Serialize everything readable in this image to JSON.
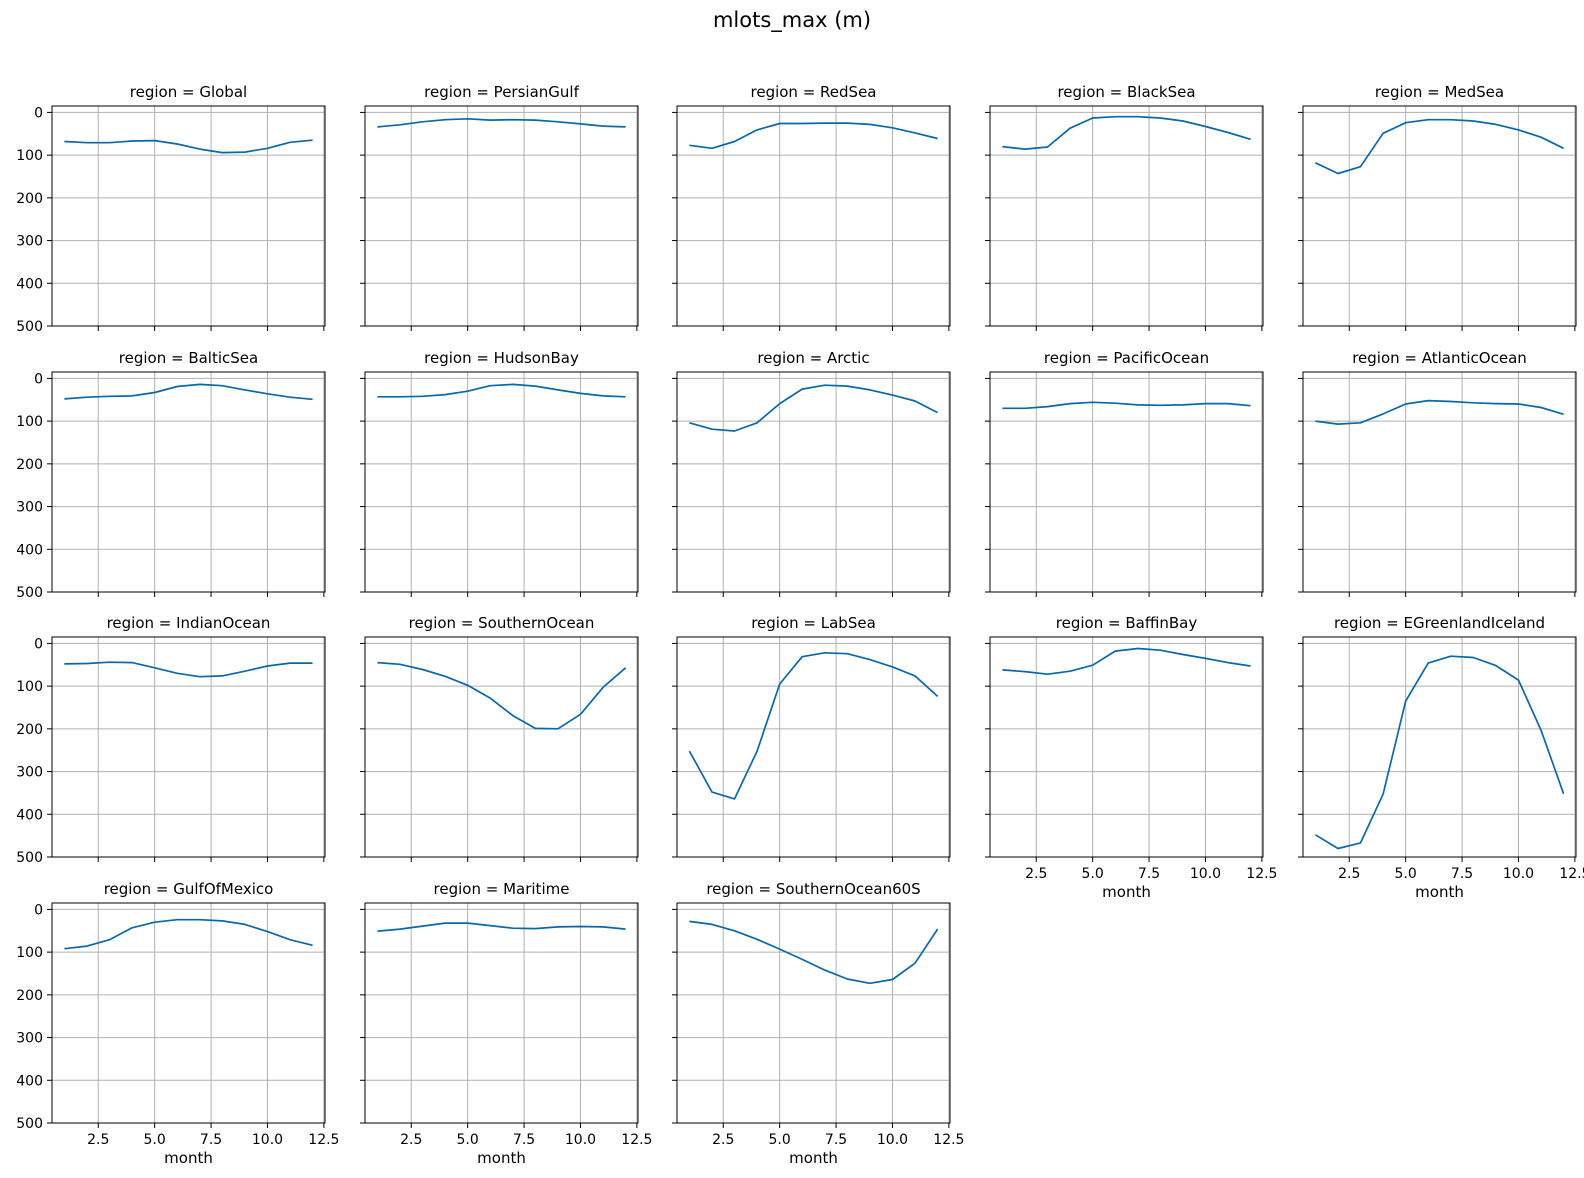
{
  "chart_data": {
    "type": "line",
    "title": "mlots_max (m)",
    "xlabel": "month",
    "ylabel": "",
    "panel_title_prefix": "region = ",
    "xlim": [
      0.45,
      12.55
    ],
    "ylim": [
      500,
      -15
    ],
    "y_inverted": true,
    "grid": true,
    "line_color": "#0868ac",
    "x_ticks": [
      2.5,
      5.0,
      7.5,
      10.0,
      12.5
    ],
    "x_tick_labels": [
      "2.5",
      "5.0",
      "7.5",
      "10.0",
      "12.5"
    ],
    "y_ticks": [
      0,
      100,
      200,
      300,
      400,
      500
    ],
    "y_tick_labels": [
      "0",
      "100",
      "200",
      "300",
      "400",
      "500"
    ],
    "x": [
      1,
      2,
      3,
      4,
      5,
      6,
      7,
      8,
      9,
      10,
      11,
      12
    ],
    "panels": [
      {
        "region": "Global",
        "values": [
          68,
          71,
          71,
          67,
          66,
          74,
          86,
          94,
          93,
          84,
          70,
          65
        ]
      },
      {
        "region": "PersianGulf",
        "values": [
          34,
          29,
          22,
          17,
          15,
          18,
          17,
          18,
          22,
          27,
          32,
          34
        ]
      },
      {
        "region": "RedSea",
        "values": [
          77,
          84,
          68,
          41,
          26,
          26,
          25,
          25,
          28,
          36,
          48,
          61
        ]
      },
      {
        "region": "BlackSea",
        "values": [
          80,
          86,
          81,
          37,
          13,
          10,
          10,
          13,
          20,
          33,
          47,
          63
        ]
      },
      {
        "region": "MedSea",
        "values": [
          118,
          143,
          127,
          49,
          24,
          17,
          17,
          20,
          28,
          41,
          58,
          84
        ]
      },
      {
        "region": "BalticSea",
        "values": [
          48,
          44,
          42,
          41,
          33,
          19,
          14,
          17,
          27,
          36,
          44,
          49
        ]
      },
      {
        "region": "HudsonBay",
        "values": [
          43,
          43,
          42,
          38,
          30,
          17,
          14,
          18,
          27,
          35,
          41,
          43
        ]
      },
      {
        "region": "Arctic",
        "values": [
          104,
          119,
          123,
          104,
          59,
          25,
          16,
          18,
          27,
          39,
          53,
          80
        ]
      },
      {
        "region": "PacificOcean",
        "values": [
          70,
          70,
          66,
          59,
          56,
          58,
          62,
          63,
          62,
          59,
          59,
          64
        ]
      },
      {
        "region": "AtlanticOcean",
        "values": [
          100,
          107,
          104,
          83,
          60,
          52,
          54,
          57,
          59,
          60,
          68,
          84
        ]
      },
      {
        "region": "IndianOcean",
        "values": [
          48,
          47,
          44,
          45,
          57,
          70,
          78,
          76,
          65,
          53,
          46,
          46
        ]
      },
      {
        "region": "SouthernOcean",
        "values": [
          45,
          49,
          61,
          77,
          98,
          128,
          169,
          199,
          200,
          166,
          103,
          57
        ]
      },
      {
        "region": "LabSea",
        "values": [
          252,
          348,
          364,
          252,
          95,
          31,
          22,
          24,
          38,
          55,
          76,
          124
        ]
      },
      {
        "region": "BaffinBay",
        "values": [
          62,
          66,
          72,
          65,
          51,
          18,
          12,
          16,
          26,
          35,
          45,
          53
        ]
      },
      {
        "region": "EGreenlandIceland",
        "values": [
          448,
          480,
          467,
          353,
          135,
          46,
          30,
          33,
          52,
          86,
          203,
          352
        ]
      },
      {
        "region": "GulfOfMexico",
        "values": [
          92,
          86,
          71,
          43,
          30,
          24,
          24,
          27,
          35,
          52,
          71,
          84
        ]
      },
      {
        "region": "Maritime",
        "values": [
          51,
          46,
          39,
          32,
          32,
          38,
          44,
          45,
          41,
          40,
          41,
          46
        ]
      },
      {
        "region": "SouthernOcean60S",
        "values": [
          28,
          35,
          50,
          70,
          93,
          117,
          142,
          163,
          173,
          164,
          126,
          46
        ]
      }
    ]
  }
}
